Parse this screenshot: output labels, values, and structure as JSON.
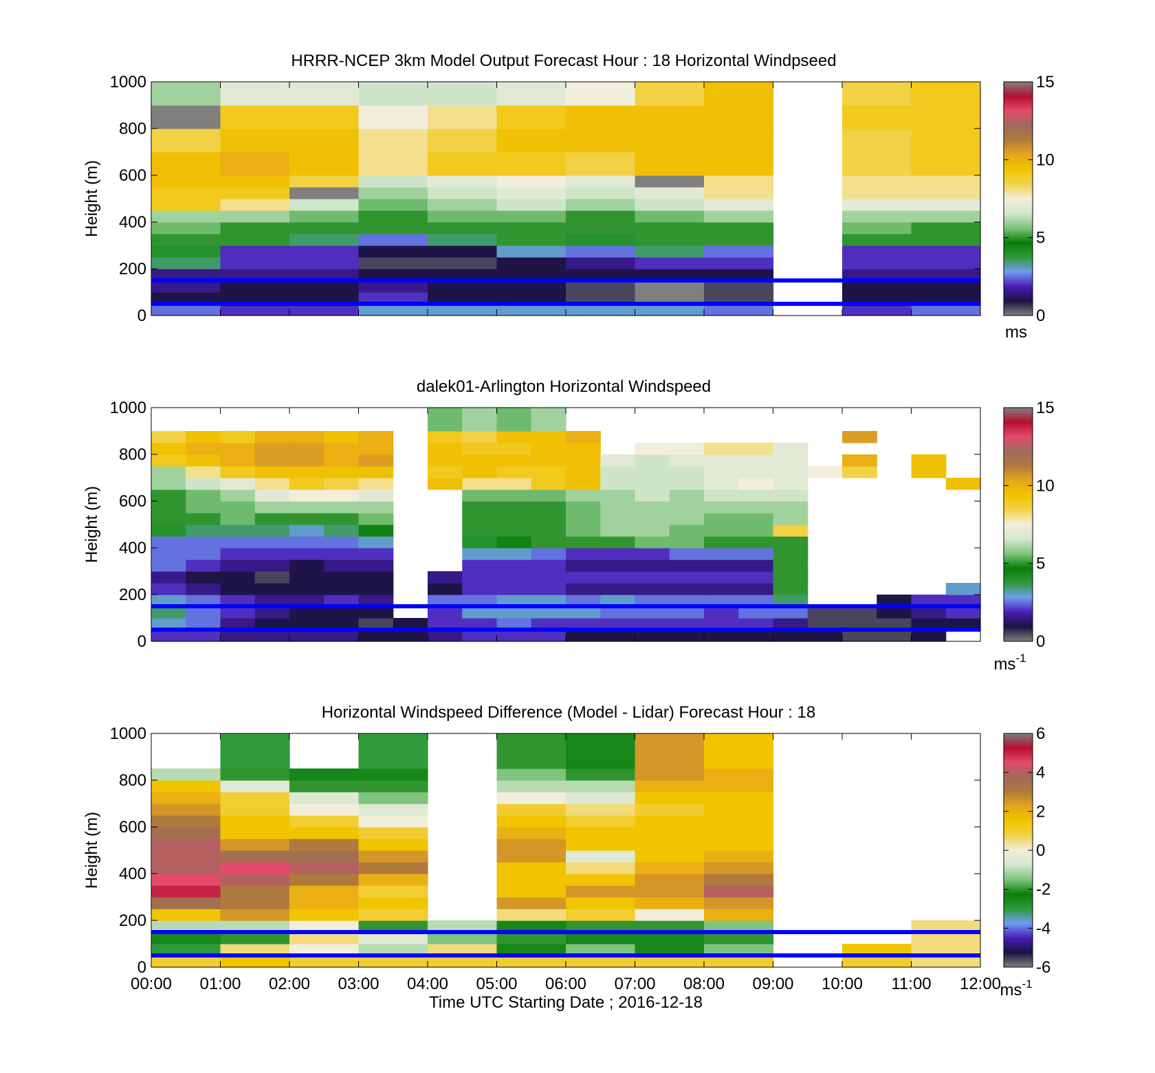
{
  "figure": {
    "colorbar_stops": [
      "#7f7f7f",
      "#1b1340",
      "#4a1db8",
      "#6f9cf2",
      "#2f9a3a",
      "#0a7d08",
      "#7fc47e",
      "#d4e7cf",
      "#f2eedc",
      "#f3d24a",
      "#f1c400",
      "#e6a61d",
      "#b07a3c",
      "#9d6a5a",
      "#e24b6b",
      "#b80d2f",
      "#7f7f7f"
    ],
    "overlay_line_color": "#0000ff"
  },
  "chart_data": [
    {
      "type": "heatmap",
      "title": "HRRR-NCEP 3km Model Output   Forecast Hour : 18 Horizontal Windpseed",
      "ylabel": "Height (m)",
      "xlabel": "",
      "ylim": [
        0,
        1000
      ],
      "yticks": [
        "0",
        "200",
        "400",
        "600",
        "800",
        "1000"
      ],
      "xlim_hours": [
        0,
        12
      ],
      "colorbar": {
        "min": 0,
        "max": 15,
        "ticks": [
          "0",
          "5",
          "10",
          "15"
        ],
        "unit": "ms"
      },
      "overlay_lines_m": [
        150,
        50
      ],
      "x_hours": [
        0.0,
        1.0,
        2.0,
        3.0,
        4.0,
        5.0,
        6.0,
        7.0,
        8.0,
        9.0,
        10.0,
        11.0
      ],
      "y_bottom_m": [
        0,
        50,
        100,
        150,
        200,
        250,
        300,
        350,
        400,
        450,
        500,
        550,
        600,
        700,
        800,
        900
      ],
      "values_ms": [
        [
          2.5,
          2.0,
          2.0,
          3.0,
          3.0,
          3.0,
          3.0,
          3.0,
          2.5,
          null,
          2.0,
          2.5
        ],
        [
          1.0,
          1.0,
          1.0,
          2.0,
          1.0,
          1.0,
          0.5,
          0.0,
          0.5,
          null,
          1.0,
          1.0
        ],
        [
          1.5,
          1.0,
          1.0,
          1.5,
          1.0,
          1.0,
          0.5,
          0.0,
          0.5,
          null,
          1.0,
          1.0
        ],
        [
          1.5,
          1.5,
          1.5,
          1.0,
          1.0,
          1.0,
          1.0,
          1.0,
          1.0,
          null,
          1.5,
          1.5
        ],
        [
          3.5,
          2.0,
          2.0,
          0.5,
          0.5,
          1.0,
          1.5,
          2.0,
          2.0,
          null,
          2.0,
          2.0
        ],
        [
          4.0,
          2.0,
          2.0,
          1.0,
          1.0,
          3.0,
          2.5,
          3.5,
          2.5,
          null,
          2.0,
          2.0
        ],
        [
          5.0,
          5.0,
          3.5,
          2.5,
          3.5,
          5.0,
          4.0,
          5.0,
          5.0,
          null,
          5.0,
          5.0
        ],
        [
          5.5,
          5.0,
          5.0,
          5.0,
          5.0,
          5.0,
          5.0,
          5.0,
          5.0,
          null,
          5.5,
          5.0
        ],
        [
          6.0,
          6.0,
          5.5,
          5.0,
          5.5,
          5.5,
          5.0,
          5.5,
          6.0,
          null,
          6.0,
          6.0
        ],
        [
          9.0,
          8.0,
          6.5,
          5.5,
          6.0,
          6.5,
          6.0,
          6.5,
          7.0,
          null,
          7.0,
          7.0
        ],
        [
          9.0,
          9.0,
          15.5,
          6.0,
          6.5,
          7.0,
          6.5,
          7.0,
          8.0,
          null,
          8.0,
          8.0
        ],
        [
          9.5,
          9.5,
          8.5,
          6.5,
          7.0,
          7.5,
          7.0,
          15.5,
          8.0,
          null,
          8.0,
          8.0
        ],
        [
          9.5,
          10.0,
          9.5,
          8.0,
          9.0,
          9.0,
          8.5,
          9.5,
          9.5,
          null,
          8.5,
          9.0
        ],
        [
          8.5,
          9.5,
          9.5,
          8.0,
          8.5,
          9.5,
          9.5,
          9.5,
          9.5,
          null,
          8.5,
          9.0
        ],
        [
          15.5,
          9.0,
          9.0,
          7.5,
          8.0,
          9.0,
          9.5,
          9.5,
          9.5,
          null,
          9.0,
          9.0
        ],
        [
          6.0,
          7.0,
          7.0,
          6.5,
          6.5,
          7.0,
          7.5,
          8.5,
          9.5,
          null,
          8.5,
          9.0
        ]
      ]
    },
    {
      "type": "heatmap",
      "title": "dalek01-Arlington  Horizontal Windspeed",
      "ylabel": "Height (m)",
      "xlabel": "",
      "ylim": [
        0,
        1000
      ],
      "yticks": [
        "0",
        "200",
        "400",
        "600",
        "800",
        "1000"
      ],
      "xlim_hours": [
        0,
        12
      ],
      "colorbar": {
        "min": 0,
        "max": 15,
        "ticks": [
          "0",
          "5",
          "10",
          "15"
        ],
        "unit": "ms",
        "unit_sup": "-1"
      },
      "overlay_lines_m": [
        150,
        50
      ],
      "x_hours": [
        0.0,
        0.5,
        1.0,
        1.5,
        2.0,
        2.5,
        3.0,
        3.5,
        4.0,
        4.5,
        5.0,
        5.5,
        6.0,
        6.5,
        7.0,
        7.5,
        8.0,
        8.5,
        9.0,
        9.5,
        10.0,
        10.5,
        11.0,
        11.5
      ],
      "y_bottom_m": [
        0,
        50,
        100,
        150,
        200,
        250,
        300,
        350,
        400,
        450,
        500,
        550,
        600,
        650,
        700,
        750,
        800,
        850,
        900
      ],
      "values_ms": [
        [
          2.0,
          2.0,
          1.5,
          1.5,
          1.5,
          1.5,
          1.0,
          1.0,
          1.5,
          2.0,
          2.0,
          2.0,
          1.0,
          1.0,
          1.0,
          1.0,
          1.0,
          1.0,
          1.0,
          1.0,
          0.5,
          0.5,
          1.0,
          null
        ],
        [
          3.0,
          2.5,
          1.5,
          1.0,
          1.0,
          1.0,
          0.5,
          1.0,
          2.0,
          2.0,
          2.5,
          2.0,
          2.0,
          2.0,
          2.0,
          2.0,
          2.0,
          2.0,
          1.5,
          0.5,
          0.5,
          0.5,
          1.0,
          1.0
        ],
        [
          3.5,
          2.5,
          2.0,
          1.5,
          1.0,
          1.0,
          1.0,
          null,
          2.0,
          3.0,
          3.0,
          3.0,
          3.0,
          2.5,
          2.5,
          2.5,
          2.0,
          2.5,
          2.5,
          0.5,
          0.5,
          1.0,
          1.5,
          2.0
        ],
        [
          3.0,
          2.5,
          2.0,
          1.5,
          1.5,
          2.0,
          1.5,
          null,
          2.5,
          2.5,
          3.0,
          3.0,
          2.5,
          3.0,
          2.5,
          2.5,
          2.5,
          2.5,
          3.5,
          null,
          null,
          1.0,
          2.0,
          2.0
        ],
        [
          2.0,
          1.5,
          1.0,
          1.0,
          1.0,
          1.0,
          1.0,
          null,
          1.0,
          2.0,
          2.0,
          2.0,
          1.5,
          1.5,
          1.5,
          1.5,
          1.5,
          1.5,
          5.0,
          null,
          null,
          null,
          null,
          3.0
        ],
        [
          1.5,
          1.0,
          1.0,
          0.5,
          1.0,
          1.0,
          1.0,
          null,
          1.5,
          2.0,
          2.0,
          2.0,
          2.0,
          2.0,
          2.0,
          2.0,
          2.0,
          2.0,
          5.0,
          null,
          null,
          null,
          null,
          null
        ],
        [
          2.5,
          2.0,
          1.5,
          1.5,
          1.0,
          1.5,
          1.5,
          null,
          null,
          2.0,
          2.0,
          2.0,
          1.5,
          1.5,
          1.5,
          1.5,
          1.5,
          1.5,
          5.0,
          null,
          null,
          null,
          null,
          null
        ],
        [
          2.5,
          2.5,
          2.0,
          2.0,
          2.0,
          2.0,
          2.0,
          null,
          null,
          3.0,
          3.0,
          2.5,
          2.0,
          2.0,
          2.0,
          2.5,
          2.5,
          2.5,
          5.0,
          null,
          null,
          null,
          null,
          null
        ],
        [
          2.5,
          2.5,
          2.5,
          2.5,
          2.5,
          2.5,
          3.0,
          null,
          null,
          4.0,
          4.5,
          5.0,
          5.0,
          5.0,
          5.5,
          5.5,
          5.0,
          5.0,
          5.0,
          null,
          null,
          null,
          null,
          null
        ],
        [
          4.0,
          3.5,
          3.5,
          3.5,
          3.0,
          3.5,
          4.5,
          null,
          null,
          5.0,
          5.0,
          5.0,
          5.5,
          6.0,
          6.0,
          5.5,
          5.5,
          5.5,
          8.5,
          null,
          null,
          null,
          null,
          null
        ],
        [
          5.0,
          5.0,
          5.5,
          5.0,
          5.0,
          5.0,
          5.5,
          null,
          null,
          5.0,
          5.0,
          5.0,
          5.5,
          6.0,
          6.0,
          6.0,
          5.5,
          5.5,
          6.0,
          null,
          null,
          null,
          null,
          null
        ],
        [
          5.0,
          5.5,
          5.5,
          6.0,
          6.0,
          6.0,
          6.0,
          null,
          null,
          5.0,
          5.0,
          5.0,
          5.5,
          6.0,
          6.0,
          6.0,
          6.0,
          6.0,
          6.0,
          null,
          null,
          null,
          null,
          null
        ],
        [
          5.0,
          5.5,
          6.0,
          7.0,
          7.5,
          7.5,
          7.0,
          null,
          null,
          5.5,
          5.5,
          5.5,
          6.0,
          6.0,
          6.5,
          6.0,
          6.5,
          6.5,
          6.5,
          null,
          null,
          null,
          null,
          null
        ],
        [
          6.0,
          6.5,
          7.0,
          8.0,
          9.0,
          8.5,
          8.0,
          null,
          9.5,
          8.0,
          8.0,
          9.0,
          9.5,
          6.5,
          6.5,
          6.5,
          7.0,
          7.5,
          7.0,
          null,
          null,
          null,
          null,
          9.5
        ],
        [
          6.0,
          8.0,
          9.0,
          9.5,
          9.5,
          9.5,
          9.5,
          null,
          9.0,
          9.5,
          9.0,
          9.0,
          9.5,
          6.5,
          6.5,
          6.5,
          7.0,
          7.0,
          7.0,
          7.5,
          8.5,
          null,
          9.5,
          null
        ],
        [
          9.0,
          9.5,
          10.0,
          10.5,
          10.5,
          10.0,
          10.5,
          null,
          9.5,
          9.5,
          9.5,
          9.5,
          9.5,
          7.0,
          6.5,
          7.0,
          7.0,
          7.0,
          7.0,
          null,
          10.0,
          null,
          9.5,
          null
        ],
        [
          9.5,
          10.0,
          10.0,
          10.5,
          10.5,
          10.0,
          10.0,
          null,
          9.5,
          9.0,
          9.0,
          9.5,
          9.5,
          null,
          7.5,
          7.5,
          8.0,
          8.0,
          7.0,
          null,
          null,
          null,
          null,
          null
        ],
        [
          8.5,
          9.5,
          9.0,
          10.0,
          10.0,
          9.5,
          10.0,
          null,
          9.0,
          8.5,
          9.5,
          9.5,
          10.0,
          null,
          null,
          null,
          null,
          null,
          null,
          null,
          10.5,
          null,
          null,
          null
        ],
        [
          null,
          null,
          null,
          null,
          null,
          null,
          null,
          null,
          5.5,
          6.0,
          5.5,
          6.0,
          null,
          null,
          null,
          null,
          null,
          null,
          null,
          null,
          null,
          null,
          null,
          null
        ]
      ]
    },
    {
      "type": "heatmap",
      "title": "Horizontal Windspeed Difference (Model - Lidar) Forecast Hour : 18",
      "ylabel": "Height (m)",
      "xlabel": "Time UTC  Starting Date ; 2016-12-18",
      "ylim": [
        0,
        1000
      ],
      "yticks": [
        "0",
        "200",
        "400",
        "600",
        "800",
        "1000"
      ],
      "xticks": [
        "00:00",
        "01:00",
        "02:00",
        "03:00",
        "04:00",
        "05:00",
        "06:00",
        "07:00",
        "08:00",
        "09:00",
        "10:00",
        "11:00",
        "12:00"
      ],
      "xlim_hours": [
        0,
        12
      ],
      "colorbar": {
        "min": -6,
        "max": 6,
        "ticks": [
          "-6",
          "-4",
          "-2",
          "0",
          "2",
          "4",
          "6"
        ],
        "unit": "ms",
        "unit_sup": "-1"
      },
      "overlay_lines_m": [
        150,
        50
      ],
      "x_hours": [
        0.0,
        1.0,
        2.0,
        3.0,
        4.0,
        5.0,
        6.0,
        7.0,
        8.0,
        9.0,
        10.0,
        11.0
      ],
      "y_bottom_m": [
        0,
        50,
        100,
        150,
        200,
        250,
        300,
        350,
        400,
        450,
        500,
        550,
        600,
        650,
        700,
        750,
        800,
        850
      ],
      "values_ms": [
        [
          1.0,
          1.5,
          1.0,
          1.0,
          1.0,
          1.0,
          1.0,
          1.0,
          1.0,
          null,
          1.0,
          0.5
        ],
        [
          -3.0,
          0.5,
          0.0,
          -1.0,
          0.5,
          -2.5,
          -1.5,
          -2.5,
          -1.5,
          null,
          1.5,
          0.5
        ],
        [
          -2.5,
          -2.0,
          0.5,
          -0.5,
          -1.5,
          -2.0,
          -2.5,
          -2.5,
          -2.0,
          null,
          null,
          0.5
        ],
        [
          -1.0,
          -1.0,
          0.0,
          -2.0,
          -1.0,
          -2.5,
          -2.0,
          -2.0,
          -1.5,
          null,
          null,
          0.5
        ],
        [
          1.5,
          2.5,
          1.5,
          1.0,
          null,
          0.5,
          1.0,
          0.0,
          2.0,
          null,
          null,
          null
        ],
        [
          3.5,
          3.0,
          2.0,
          1.5,
          null,
          2.5,
          1.5,
          2.0,
          2.5,
          null,
          null,
          null
        ],
        [
          5.0,
          3.0,
          2.0,
          1.0,
          null,
          1.5,
          2.5,
          2.5,
          4.0,
          null,
          null,
          null
        ],
        [
          4.5,
          4.0,
          3.0,
          2.0,
          null,
          1.5,
          1.5,
          2.5,
          3.0,
          null,
          null,
          null
        ],
        [
          4.0,
          4.5,
          4.0,
          3.0,
          null,
          1.5,
          0.5,
          2.0,
          2.5,
          null,
          null,
          null
        ],
        [
          4.0,
          3.5,
          3.5,
          2.5,
          null,
          2.5,
          -0.5,
          1.5,
          2.0,
          null,
          null,
          null
        ],
        [
          4.0,
          2.5,
          3.0,
          1.5,
          null,
          2.5,
          1.5,
          1.5,
          1.5,
          null,
          null,
          null
        ],
        [
          3.5,
          1.5,
          1.5,
          1.0,
          null,
          2.0,
          1.5,
          1.5,
          1.5,
          null,
          null,
          null
        ],
        [
          3.0,
          1.5,
          1.0,
          0.0,
          null,
          1.5,
          1.0,
          1.5,
          1.5,
          null,
          null,
          null
        ],
        [
          2.5,
          1.0,
          0.0,
          -0.5,
          null,
          1.0,
          0.5,
          1.0,
          1.5,
          null,
          null,
          null
        ],
        [
          2.0,
          1.0,
          -0.5,
          -1.5,
          null,
          0.0,
          -0.5,
          1.5,
          1.5,
          null,
          null,
          null
        ],
        [
          1.5,
          -0.5,
          -2.0,
          -2.0,
          null,
          -1.0,
          -1.0,
          2.0,
          2.0,
          null,
          null,
          null
        ],
        [
          -1.0,
          -2.0,
          -2.5,
          -2.5,
          null,
          -1.5,
          -2.0,
          2.5,
          2.0,
          null,
          null,
          null
        ],
        [
          null,
          -3.0,
          null,
          -3.0,
          null,
          -2.0,
          -2.5,
          2.5,
          1.5,
          null,
          null,
          null
        ]
      ]
    }
  ]
}
